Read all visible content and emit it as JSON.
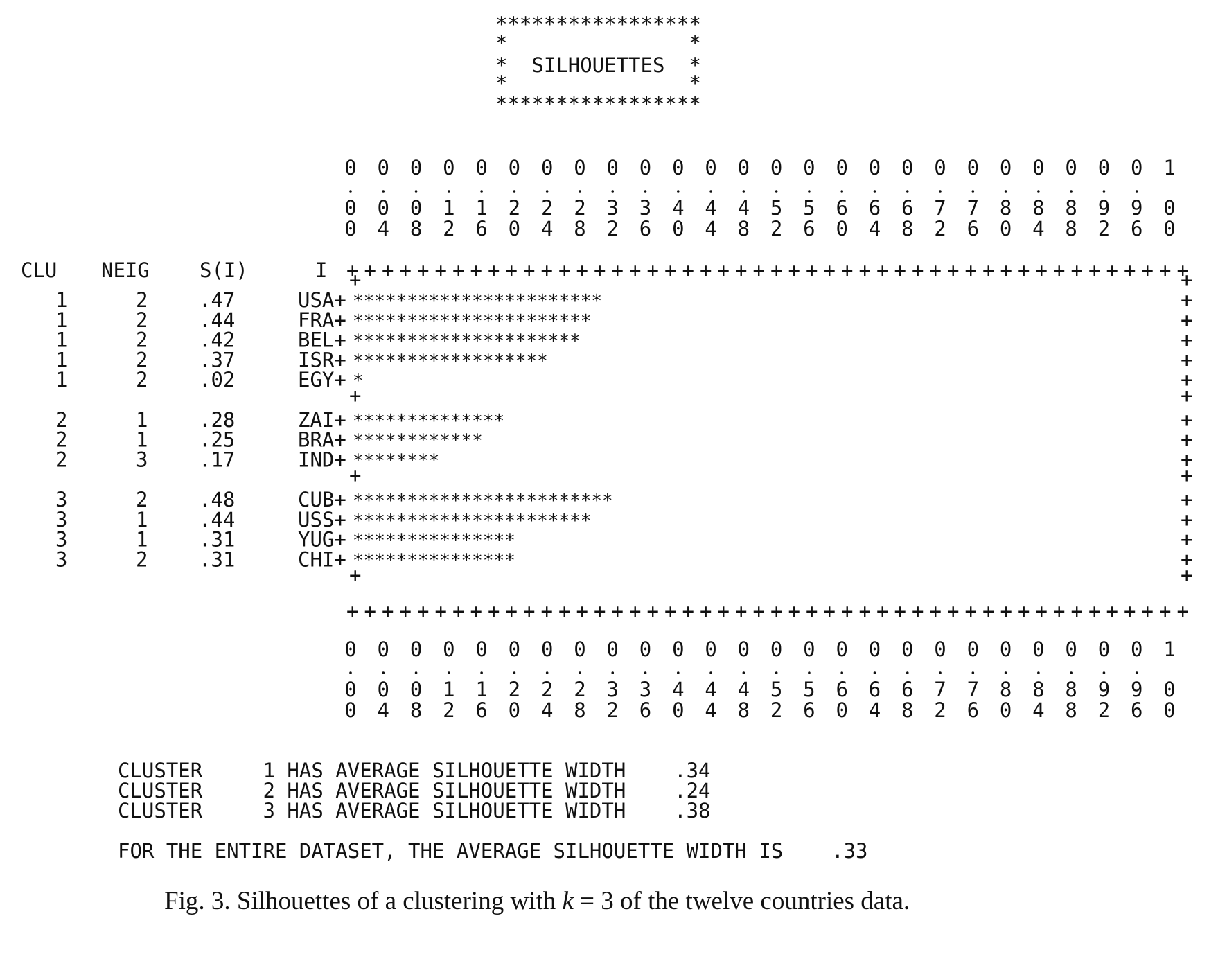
{
  "banner": {
    "border_row": "*****************",
    "side_row": "*               *",
    "title_row": "*  SILHOUETTES  *"
  },
  "headers": {
    "clu": "CLU",
    "neig": "NEIG",
    "s": "S(I)",
    "i": "I"
  },
  "axis_ticks": [
    [
      "0",
      "0",
      "0"
    ],
    [
      "0",
      "0",
      "4"
    ],
    [
      "0",
      "0",
      "8"
    ],
    [
      "0",
      "1",
      "2"
    ],
    [
      "0",
      "1",
      "6"
    ],
    [
      "0",
      "2",
      "0"
    ],
    [
      "0",
      "2",
      "4"
    ],
    [
      "0",
      "2",
      "8"
    ],
    [
      "0",
      "3",
      "2"
    ],
    [
      "0",
      "3",
      "6"
    ],
    [
      "0",
      "4",
      "0"
    ],
    [
      "0",
      "4",
      "4"
    ],
    [
      "0",
      "4",
      "8"
    ],
    [
      "0",
      "5",
      "2"
    ],
    [
      "0",
      "5",
      "6"
    ],
    [
      "0",
      "6",
      "0"
    ],
    [
      "0",
      "6",
      "4"
    ],
    [
      "0",
      "6",
      "8"
    ],
    [
      "0",
      "7",
      "2"
    ],
    [
      "0",
      "7",
      "6"
    ],
    [
      "0",
      "8",
      "0"
    ],
    [
      "0",
      "8",
      "4"
    ],
    [
      "0",
      "8",
      "8"
    ],
    [
      "0",
      "9",
      "2"
    ],
    [
      "0",
      "9",
      "6"
    ],
    [
      "1",
      "0",
      "0"
    ]
  ],
  "chart_data": {
    "type": "bar",
    "title": "SILHOUETTES",
    "xlim": [
      0,
      1
    ],
    "clusters": [
      {
        "cluster": 1,
        "average_width": ".34",
        "members": [
          {
            "clu": "1",
            "neig": "2",
            "s": ".47",
            "label": "USA",
            "value": 0.47
          },
          {
            "clu": "1",
            "neig": "2",
            "s": ".44",
            "label": "FRA",
            "value": 0.44
          },
          {
            "clu": "1",
            "neig": "2",
            "s": ".42",
            "label": "BEL",
            "value": 0.42
          },
          {
            "clu": "1",
            "neig": "2",
            "s": ".37",
            "label": "ISR",
            "value": 0.37
          },
          {
            "clu": "1",
            "neig": "2",
            "s": ".02",
            "label": "EGY",
            "value": 0.02
          }
        ]
      },
      {
        "cluster": 2,
        "average_width": ".24",
        "members": [
          {
            "clu": "2",
            "neig": "1",
            "s": ".28",
            "label": "ZAI",
            "value": 0.28
          },
          {
            "clu": "2",
            "neig": "1",
            "s": ".25",
            "label": "BRA",
            "value": 0.25
          },
          {
            "clu": "2",
            "neig": "3",
            "s": ".17",
            "label": "IND",
            "value": 0.17
          }
        ]
      },
      {
        "cluster": 3,
        "average_width": ".38",
        "members": [
          {
            "clu": "3",
            "neig": "2",
            "s": ".48",
            "label": "CUB",
            "value": 0.48
          },
          {
            "clu": "3",
            "neig": "1",
            "s": ".44",
            "label": "USS",
            "value": 0.44
          },
          {
            "clu": "3",
            "neig": "1",
            "s": ".31",
            "label": "YUG",
            "value": 0.31
          },
          {
            "clu": "3",
            "neig": "2",
            "s": ".31",
            "label": "CHI",
            "value": 0.31
          }
        ]
      }
    ],
    "overall_average_width": ".33"
  },
  "summary": {
    "lines": [
      "CLUSTER     1 HAS AVERAGE SILHOUETTE WIDTH    .34",
      "CLUSTER     2 HAS AVERAGE SILHOUETTE WIDTH    .24",
      "CLUSTER     3 HAS AVERAGE SILHOUETTE WIDTH    .38"
    ],
    "overall": "FOR THE ENTIRE DATASET, THE AVERAGE SILHOUETTE WIDTH IS    .33"
  },
  "caption": {
    "prefix": "Fig. 3. Silhouettes of a clustering with ",
    "k": "k",
    "suffix": " = 3 of the twelve countries data."
  }
}
